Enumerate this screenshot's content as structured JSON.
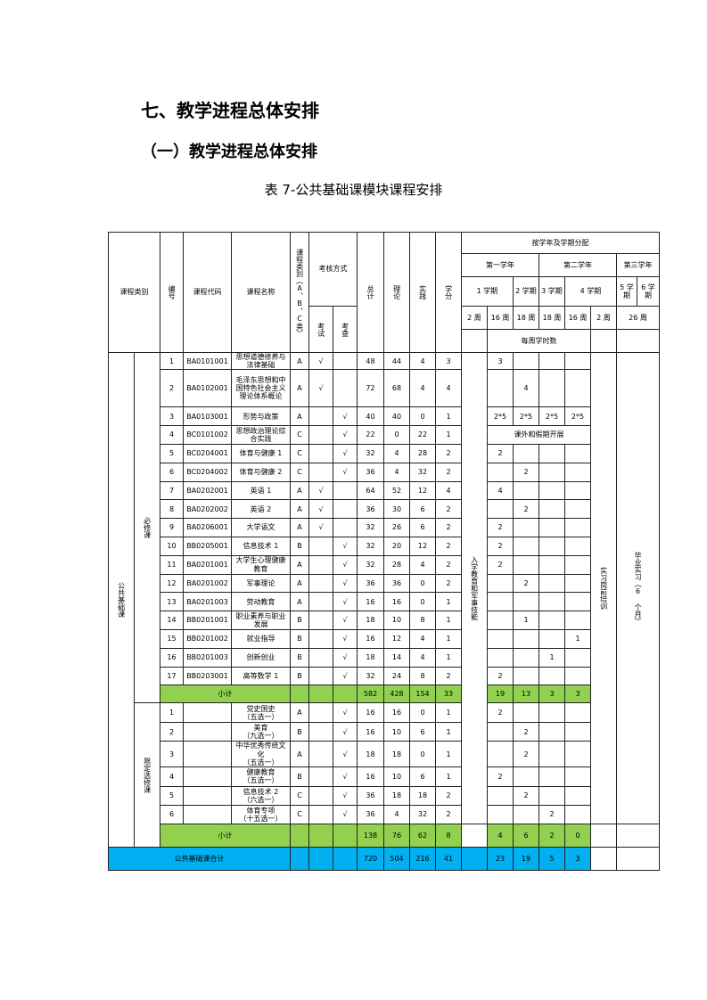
{
  "heading1": "七、教学进程总体安排",
  "heading2": "（一）教学进程总体安排",
  "caption": "表 7-公共基础课模块课程安排",
  "header": {
    "category": "课程类别",
    "no": "编号",
    "code": "课程代码",
    "name": "课程名称",
    "type": "课程类别（A、B、C类）",
    "assess": "考核方式",
    "exam": "考试",
    "check": "考查",
    "total": "总计",
    "theory": "理论",
    "practice": "实践",
    "credit": "学分",
    "distribution": "按学年及学期分配",
    "year1": "第一学年",
    "year2": "第二学年",
    "year3": "第三学年",
    "sem1": "1 学期",
    "sem2": "2 学期",
    "sem3": "3 学期",
    "sem4": "4 学期",
    "sem5": "5 学期",
    "sem6": "6 学期",
    "weeks": [
      "2 周",
      "16 周",
      "18 周",
      "18 周",
      "16 周",
      "2 周",
      "26 周"
    ],
    "weekly_hours": "每周学时数"
  },
  "groups": {
    "main": "公共基础课",
    "required": "必修课",
    "limited": "限定选修课",
    "entrance": "入学教育和军事技能",
    "pre_internship": "实习岗前培训",
    "graduation_internship": "毕业实习（6 个月）"
  },
  "required_rows": [
    {
      "no": "1",
      "code": "BA0101001",
      "name": "思想道德修养与法律基础",
      "type": "A",
      "exam": "√",
      "check": "",
      "total": "48",
      "theory": "44",
      "practice": "4",
      "credit": "3",
      "weeks": [
        "3",
        "",
        "",
        ""
      ]
    },
    {
      "no": "2",
      "code": "BA0102001",
      "name": "毛泽东思想和中国特色社会主义理论体系概论",
      "type": "A",
      "exam": "√",
      "check": "",
      "total": "72",
      "theory": "68",
      "practice": "4",
      "credit": "4",
      "weeks": [
        "",
        "4",
        "",
        ""
      ]
    },
    {
      "no": "3",
      "code": "BA0103001",
      "name": "形势与政策",
      "type": "A",
      "exam": "",
      "check": "√",
      "total": "40",
      "theory": "40",
      "practice": "0",
      "credit": "1",
      "weeks": [
        "2*5",
        "2*5",
        "2*5",
        "2*5"
      ]
    },
    {
      "no": "4",
      "code": "BC0101002",
      "name": "思想政治理论综合实践",
      "type": "C",
      "exam": "",
      "check": "√",
      "total": "22",
      "theory": "0",
      "practice": "22",
      "credit": "1",
      "weeks_note": "课外和假期开展"
    },
    {
      "no": "5",
      "code": "BC0204001",
      "name": "体育与健康 1",
      "type": "C",
      "exam": "",
      "check": "√",
      "total": "32",
      "theory": "4",
      "practice": "28",
      "credit": "2",
      "weeks": [
        "2",
        "",
        "",
        ""
      ]
    },
    {
      "no": "6",
      "code": "BC0204002",
      "name": "体育与健康 2",
      "type": "C",
      "exam": "",
      "check": "√",
      "total": "36",
      "theory": "4",
      "practice": "32",
      "credit": "2",
      "weeks": [
        "",
        "2",
        "",
        ""
      ]
    },
    {
      "no": "7",
      "code": "BA0202001",
      "name": "英语 1",
      "type": "A",
      "exam": "√",
      "check": "",
      "total": "64",
      "theory": "52",
      "practice": "12",
      "credit": "4",
      "weeks": [
        "4",
        "",
        "",
        ""
      ]
    },
    {
      "no": "8",
      "code": "BA0202002",
      "name": "英语 2",
      "type": "A",
      "exam": "√",
      "check": "",
      "total": "36",
      "theory": "30",
      "practice": "6",
      "credit": "2",
      "weeks": [
        "",
        "2",
        "",
        ""
      ]
    },
    {
      "no": "9",
      "code": "BA0206001",
      "name": "大学语文",
      "type": "A",
      "exam": "√",
      "check": "",
      "total": "32",
      "theory": "26",
      "practice": "6",
      "credit": "2",
      "weeks": [
        "2",
        "",
        "",
        ""
      ]
    },
    {
      "no": "10",
      "code": "BB0205001",
      "name": "信息技术 1",
      "type": "B",
      "exam": "",
      "check": "√",
      "total": "32",
      "theory": "20",
      "practice": "12",
      "credit": "2",
      "weeks": [
        "2",
        "",
        "",
        ""
      ]
    },
    {
      "no": "11",
      "code": "BA0201001",
      "name": "大学生心理健康教育",
      "type": "A",
      "exam": "",
      "check": "√",
      "total": "32",
      "theory": "28",
      "practice": "4",
      "credit": "2",
      "weeks": [
        "2",
        "",
        "",
        ""
      ]
    },
    {
      "no": "12",
      "code": "BA0201002",
      "name": "军事理论",
      "type": "A",
      "exam": "",
      "check": "√",
      "total": "36",
      "theory": "36",
      "practice": "0",
      "credit": "2",
      "weeks": [
        "",
        "2",
        "",
        ""
      ]
    },
    {
      "no": "13",
      "code": "BA0201003",
      "name": "劳动教育",
      "type": "A",
      "exam": "",
      "check": "√",
      "total": "16",
      "theory": "16",
      "practice": "0",
      "credit": "1",
      "weeks": [
        "",
        "",
        "",
        ""
      ]
    },
    {
      "no": "14",
      "code": "BB0201001",
      "name": "职业素养与职业发展",
      "type": "B",
      "exam": "",
      "check": "√",
      "total": "18",
      "theory": "10",
      "practice": "8",
      "credit": "1",
      "weeks": [
        "",
        "1",
        "",
        ""
      ]
    },
    {
      "no": "15",
      "code": "BB0201002",
      "name": "就业指导",
      "type": "B",
      "exam": "",
      "check": "√",
      "total": "16",
      "theory": "12",
      "practice": "4",
      "credit": "1",
      "weeks": [
        "",
        "",
        "",
        "1"
      ]
    },
    {
      "no": "16",
      "code": "BB0201003",
      "name": "创新创业",
      "type": "B",
      "exam": "",
      "check": "√",
      "total": "18",
      "theory": "14",
      "practice": "4",
      "credit": "1",
      "weeks": [
        "",
        "",
        "1",
        ""
      ]
    },
    {
      "no": "17",
      "code": "BB0203001",
      "name": "高等数学 1",
      "type": "B",
      "exam": "",
      "check": "√",
      "total": "32",
      "theory": "24",
      "practice": "8",
      "credit": "2",
      "weeks": [
        "2",
        "",
        "",
        ""
      ]
    }
  ],
  "required_subtotal": {
    "label": "小计",
    "total": "582",
    "theory": "428",
    "practice": "154",
    "credit": "33",
    "weeks": [
      "19",
      "13",
      "3",
      "3"
    ]
  },
  "limited_rows": [
    {
      "no": "1",
      "code": "",
      "name": "党史国史\n（五选一）",
      "type": "A",
      "exam": "",
      "check": "√",
      "total": "16",
      "theory": "16",
      "practice": "0",
      "credit": "1",
      "weeks": [
        "2",
        "",
        "",
        ""
      ]
    },
    {
      "no": "2",
      "code": "",
      "name": "美育\n（九选一）",
      "type": "B",
      "exam": "",
      "check": "√",
      "total": "16",
      "theory": "10",
      "practice": "6",
      "credit": "1",
      "weeks": [
        "",
        "2",
        "",
        ""
      ]
    },
    {
      "no": "3",
      "code": "",
      "name": "中华优秀传统文化\n（五选一）",
      "type": "A",
      "exam": "",
      "check": "√",
      "total": "18",
      "theory": "18",
      "practice": "0",
      "credit": "1",
      "weeks": [
        "",
        "2",
        "",
        ""
      ]
    },
    {
      "no": "4",
      "code": "",
      "name": "健康教育\n（五选一）",
      "type": "B",
      "exam": "",
      "check": "√",
      "total": "16",
      "theory": "10",
      "practice": "6",
      "credit": "1",
      "weeks": [
        "2",
        "",
        "",
        ""
      ]
    },
    {
      "no": "5",
      "code": "",
      "name": "信息技术 2\n（六选一）",
      "type": "C",
      "exam": "",
      "check": "√",
      "total": "36",
      "theory": "18",
      "practice": "18",
      "credit": "2",
      "weeks": [
        "",
        "2",
        "",
        ""
      ]
    },
    {
      "no": "6",
      "code": "",
      "name": "体育专项\n（十五选一）",
      "type": "C",
      "exam": "",
      "check": "√",
      "total": "36",
      "theory": "4",
      "practice": "32",
      "credit": "2",
      "weeks": [
        "",
        "",
        "2",
        ""
      ]
    }
  ],
  "limited_subtotal": {
    "label": "小计",
    "total": "138",
    "theory": "76",
    "practice": "62",
    "credit": "8",
    "weeks": [
      "4",
      "6",
      "2",
      "0"
    ]
  },
  "grand_total": {
    "label": "公共基础课合计",
    "total": "720",
    "theory": "504",
    "practice": "216",
    "credit": "41",
    "weeks": [
      "23",
      "19",
      "5",
      "3"
    ]
  },
  "colors": {
    "subtotal": "#92d050",
    "total": "#00b0f0"
  }
}
